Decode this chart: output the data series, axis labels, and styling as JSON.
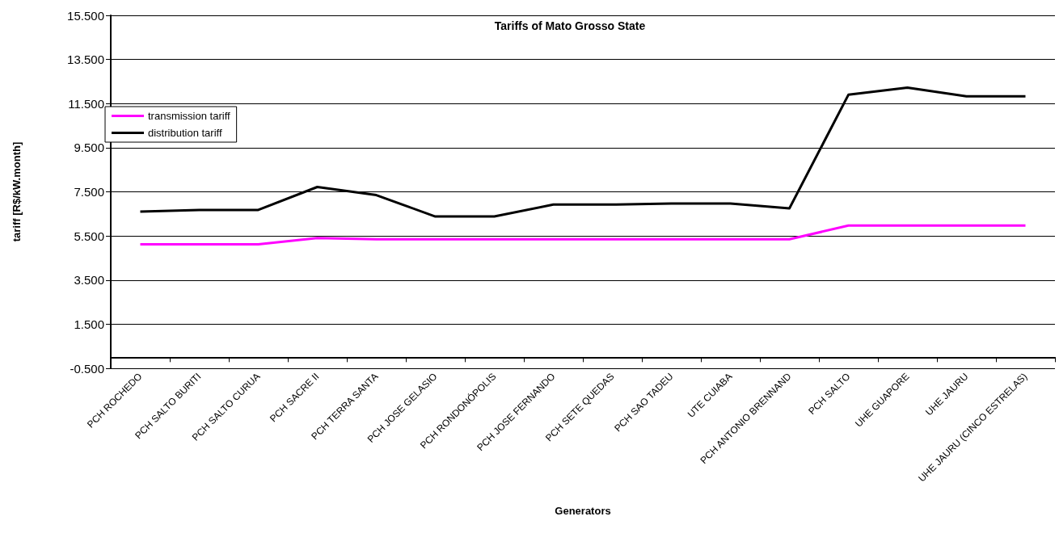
{
  "chart_data": {
    "type": "line",
    "title": "Tariffs of Mato Grosso State",
    "xlabel": "Generators",
    "ylabel": "tariff [R$/kW.month]",
    "categories": [
      "PCH ROCHEDO",
      "PCH SALTO BURITI",
      "PCH SALTO CURUA",
      "PCH SACRE II",
      "PCH TERRA SANTA",
      "PCH JOSE GELASIO",
      "PCH RONDONÓPOLIS",
      "PCH JOSE FERNANDO",
      "PCH SETE QUEDAS",
      "PCH SAO TADEU",
      "UTE CUIABA",
      "PCH ANTONIO BRENNAND",
      "PCH SALTO",
      "UHE GUAPORE",
      "UHE JAURU",
      "UHE JAURU (CINCO ESTRELAS)"
    ],
    "series": [
      {
        "name": "transmission tariff",
        "color": "#ff00ff",
        "values": [
          5.12,
          5.12,
          5.12,
          5.4,
          5.35,
          5.35,
          5.35,
          5.35,
          5.35,
          5.35,
          5.35,
          5.35,
          5.97,
          5.97,
          5.97,
          5.97
        ]
      },
      {
        "name": "distribution tariff",
        "color": "#000000",
        "values": [
          6.6,
          6.68,
          6.68,
          7.72,
          7.35,
          6.38,
          6.38,
          6.92,
          6.92,
          6.97,
          6.97,
          6.75,
          11.9,
          12.22,
          11.83,
          11.83
        ]
      }
    ],
    "ylim": [
      -0.5,
      15.5
    ],
    "yticks": [
      {
        "value": -0.5,
        "label": "-0.500"
      },
      {
        "value": 1.5,
        "label": "1.500"
      },
      {
        "value": 3.5,
        "label": "3.500"
      },
      {
        "value": 5.5,
        "label": "5.500"
      },
      {
        "value": 7.5,
        "label": "7.500"
      },
      {
        "value": 9.5,
        "label": "9.500"
      },
      {
        "value": 11.5,
        "label": "11.500"
      },
      {
        "value": 13.5,
        "label": "13.500"
      },
      {
        "value": 15.5,
        "label": "15.500"
      }
    ],
    "grid": "y",
    "legend": "top left",
    "marker": "none",
    "line_style": "solid"
  }
}
